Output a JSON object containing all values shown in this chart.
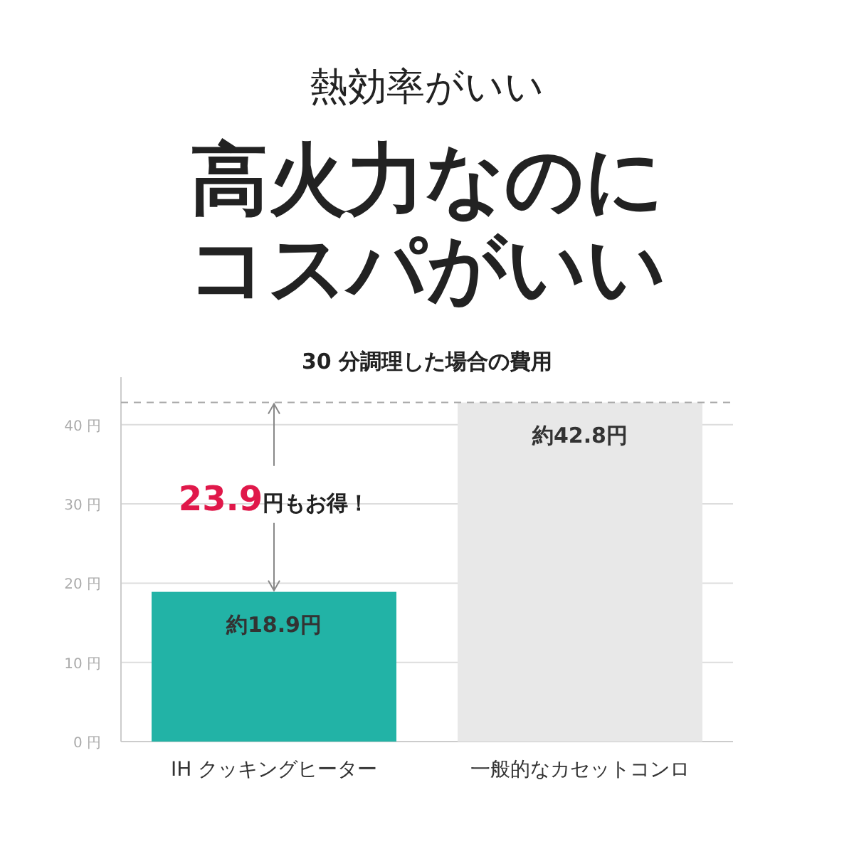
{
  "chart_data": {
    "type": "bar",
    "title": "高火力なのにコスパがいい",
    "subtitle": "30 分調理した場合の費用",
    "annotations": [
      "熱効率がいい",
      {
        "text": "23.9円もお得！",
        "x": "IH クッキングヒーター",
        "y": 18.9
      }
    ],
    "categories": [
      "IH クッキングヒーター",
      "一般的なカセットコンロ"
    ],
    "values": [
      18.9,
      42.8
    ],
    "colors": [
      "#22b3a6",
      "#e8e8e8"
    ],
    "value_labels": [
      "約18.9円",
      "約42.8円"
    ],
    "ylim": [
      0,
      46
    ],
    "yticks": [
      {
        "value": 0,
        "label": "0 円"
      },
      {
        "value": 10,
        "label": "10 円"
      },
      {
        "value": 20,
        "label": "20 円"
      },
      {
        "value": 30,
        "label": "30 円"
      },
      {
        "value": 40,
        "label": "40 円"
      }
    ],
    "grid": "y",
    "ref_lines": [
      {
        "axis": "y",
        "value": 42.8,
        "line_style": "dashed",
        "color": "#aaaaaa"
      }
    ]
  }
}
